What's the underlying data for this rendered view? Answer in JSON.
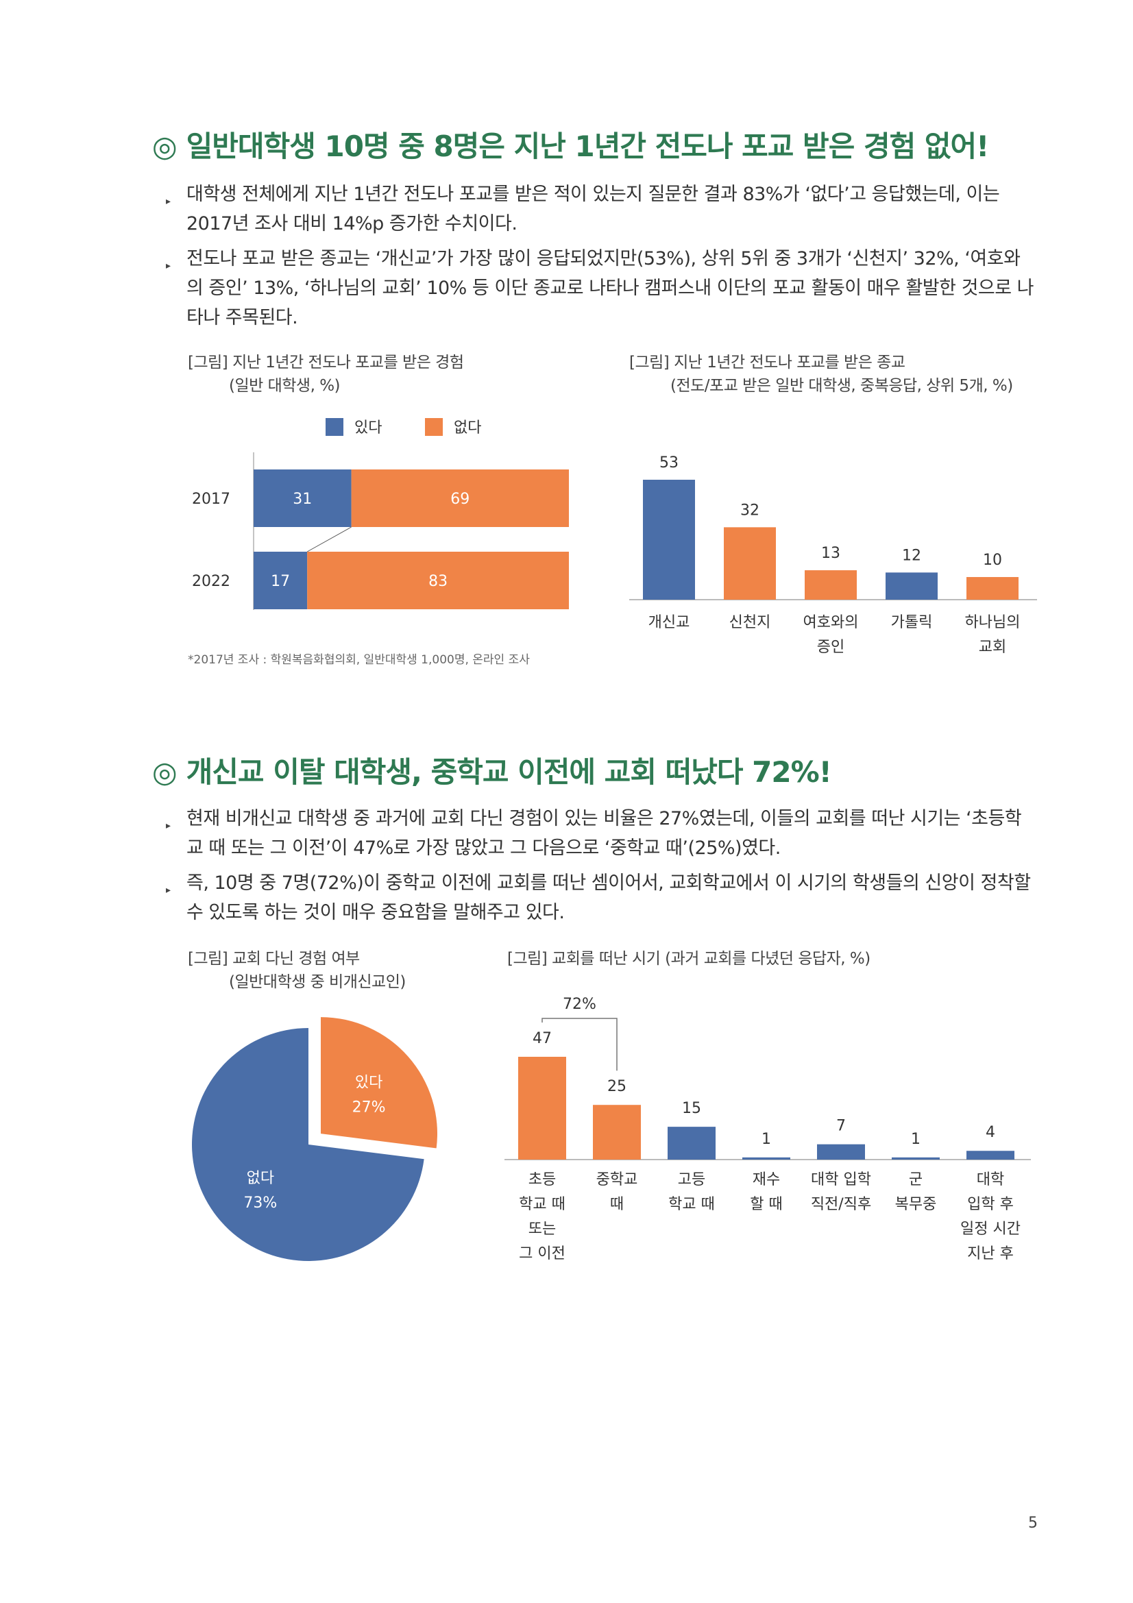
{
  "section1": {
    "mark": "◎",
    "title": "일반대학생 10명 중 8명은 지난 1년간 전도나 포교 받은 경험 없어!",
    "bullets": [
      "대학생 전체에게 지난 1년간 전도나 포교를 받은 적이 있는지 질문한 결과 83%가 ‘없다’고 응답했는데, 이는 2017년 조사 대비 14%p 증가한 수치이다.",
      "전도나 포교 받은 종교는 ‘개신교’가 가장 많이 응답되었지만(53%), 상위 5위 중 3개가 ‘신천지’ 32%, ‘여호와의 증인’ 13%, ‘하나님의 교회’ 10% 등 이단 종교로 나타나 캠퍼스내 이단의 포교 활동이 매우 활발한 것으로 나타나 주목된다."
    ],
    "figure1": {
      "caption": "[그림] 지난 1년간 전도나 포교를 받은 경험",
      "sub": "(일반 대학생, %)",
      "note": "*2017년 조사 : 학원복음화협의회, 일반대학생 1,000명, 온라인 조사"
    },
    "figure2": {
      "caption": "[그림] 지난 1년간 전도나 포교를 받은 종교",
      "sub": "(전도/포교 받은 일반 대학생, 중복응답, 상위 5개, %)"
    }
  },
  "section2": {
    "mark": "◎",
    "title": "개신교 이탈 대학생, 중학교 이전에 교회 떠났다 72%!",
    "bullets": [
      "현재 비개신교 대학생 중 과거에 교회 다닌 경험이 있는 비율은 27%였는데, 이들의 교회를 떠난 시기는 ‘초등학교 때 또는 그 이전’이 47%로 가장 많았고 그 다음으로 ‘중학교 때’(25%)였다.",
      "즉, 10명 중 7명(72%)이 중학교 이전에 교회를 떠난 셈이어서, 교회학교에서 이 시기의 학생들의 신앙이 정착할 수 있도록 하는 것이 매우 중요함을 말해주고 있다."
    ],
    "figure3": {
      "caption": "[그림] 교회 다닌 경험 여부",
      "sub": "(일반대학생 중 비개신교인)"
    },
    "figure4": {
      "caption": "[그림] 교회를 떠난 시기 (과거 교회를 다녔던 응답자, %)"
    }
  },
  "page_number": "5",
  "colors": {
    "blue": "#4a6ea8",
    "orange": "#f08447",
    "title_green": "#2e7a52"
  },
  "chart_data": [
    {
      "type": "bar",
      "orientation": "horizontal-stacked",
      "categories": [
        "2017",
        "2022"
      ],
      "series": [
        {
          "name": "있다",
          "values": [
            31,
            17
          ],
          "color": "#4a6ea8"
        },
        {
          "name": "없다",
          "values": [
            69,
            83
          ],
          "color": "#f08447"
        }
      ],
      "legend_position": "top"
    },
    {
      "type": "bar",
      "categories": [
        "개신교",
        "신천지",
        "여호와의 증인",
        "가톨릭",
        "하나님의 교회"
      ],
      "category_lines": [
        [
          "개신교"
        ],
        [
          "신천지"
        ],
        [
          "여호와의",
          "증인"
        ],
        [
          "가톨릭"
        ],
        [
          "하나님의",
          "교회"
        ]
      ],
      "values": [
        53,
        32,
        13,
        12,
        10
      ],
      "colors": [
        "#4a6ea8",
        "#f08447",
        "#f08447",
        "#4a6ea8",
        "#f08447"
      ]
    },
    {
      "type": "pie",
      "slices": [
        {
          "label": "있다",
          "value": 27,
          "pct": "27%",
          "color": "#f08447",
          "exploded": true
        },
        {
          "label": "없다",
          "value": 73,
          "pct": "73%",
          "color": "#4a6ea8",
          "exploded": false
        }
      ]
    },
    {
      "type": "bar",
      "categories": [
        "초등학교 때 또는 그 이전",
        "중학교 때",
        "고등학교 때",
        "재수할 때",
        "대학 입학 직전/직후",
        "군 복무중",
        "대학 입학 후 일정 시간 지난 후"
      ],
      "category_lines": [
        [
          "초등",
          "학교 때",
          "또는",
          "그 이전"
        ],
        [
          "중학교",
          "때"
        ],
        [
          "고등",
          "학교 때"
        ],
        [
          "재수",
          "할 때"
        ],
        [
          "대학 입학",
          "직전/직후"
        ],
        [
          "군",
          "복무중"
        ],
        [
          "대학",
          "입학 후",
          "일정 시간",
          "지난 후"
        ]
      ],
      "values": [
        47,
        25,
        15,
        1,
        7,
        1,
        4
      ],
      "colors": [
        "#f08447",
        "#f08447",
        "#4a6ea8",
        "#4a6ea8",
        "#4a6ea8",
        "#4a6ea8",
        "#4a6ea8"
      ],
      "bracket": {
        "label": "72%",
        "from": 0,
        "to": 1
      }
    }
  ]
}
